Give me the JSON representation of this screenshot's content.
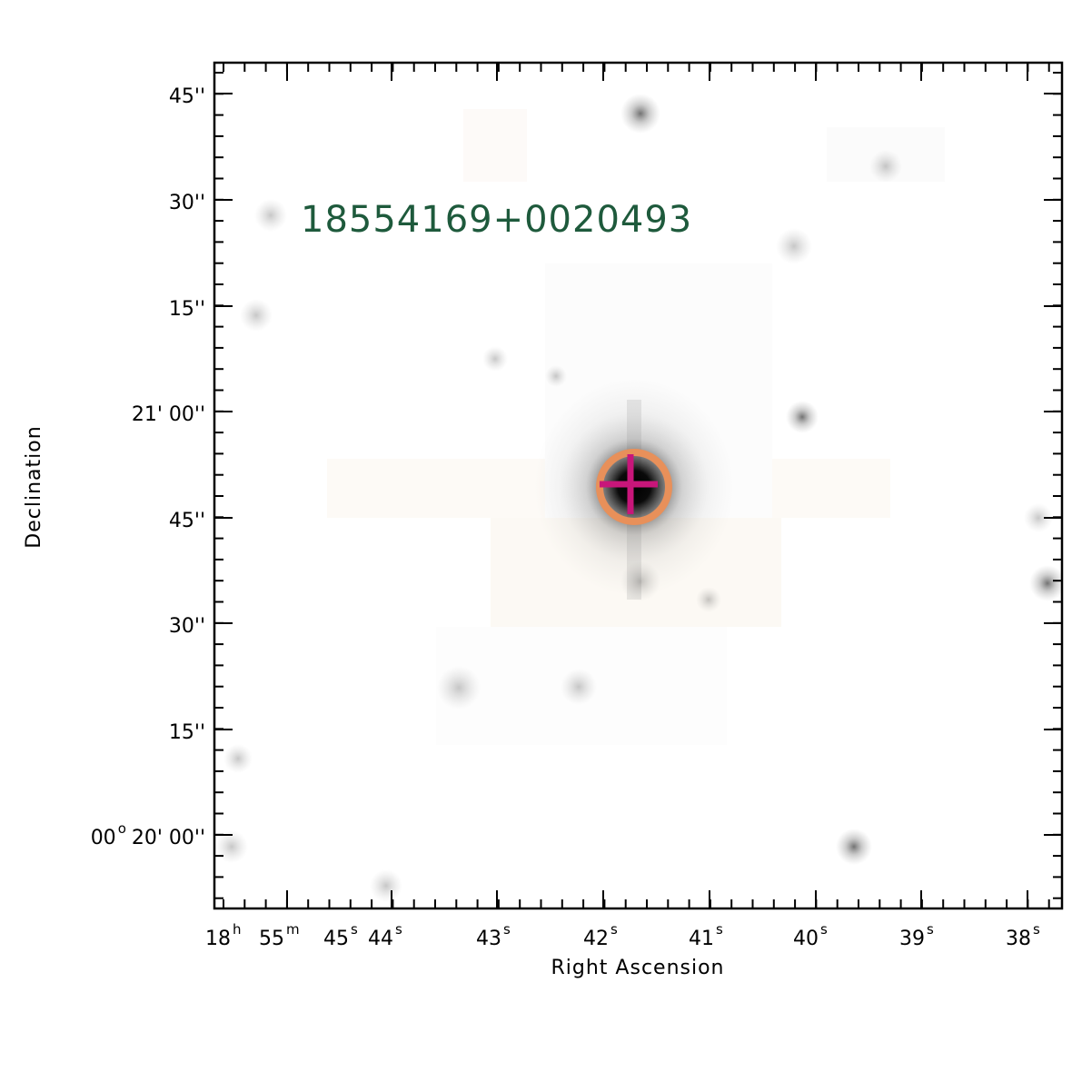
{
  "target_label": "18554169+0020493",
  "x_axis_title": "Right Ascension",
  "y_axis_title": "Declination",
  "x_tick_labels": [
    {
      "main": "18",
      "sup": "h"
    },
    {
      "main": "55",
      "sup": "m"
    },
    {
      "main": "45",
      "sup": "s"
    },
    {
      "main": "44",
      "sup": "s"
    },
    {
      "main": "43",
      "sup": "s"
    },
    {
      "main": "42",
      "sup": "s"
    },
    {
      "main": "41",
      "sup": "s"
    },
    {
      "main": "40",
      "sup": "s"
    },
    {
      "main": "39",
      "sup": "s"
    },
    {
      "main": "38",
      "sup": "s"
    }
  ],
  "y_tick_labels": [
    {
      "prefix": "",
      "prefix_sup": "",
      "text": "45''"
    },
    {
      "prefix": "",
      "prefix_sup": "",
      "text": "30''"
    },
    {
      "prefix": "",
      "prefix_sup": "",
      "text": "15''"
    },
    {
      "prefix": "",
      "prefix_sup": "",
      "text": "21' 00''"
    },
    {
      "prefix": "",
      "prefix_sup": "",
      "text": "45''"
    },
    {
      "prefix": "",
      "prefix_sup": "",
      "text": "30''"
    },
    {
      "prefix": "",
      "prefix_sup": "",
      "text": "15''"
    },
    {
      "prefix": "00",
      "prefix_sup": "o",
      "text": "20' 00''"
    }
  ],
  "colors": {
    "target_label": "#1e5a3c",
    "marker_circle": "#e8905a",
    "marker_cross": "#c8167a",
    "source": "#000000"
  }
}
